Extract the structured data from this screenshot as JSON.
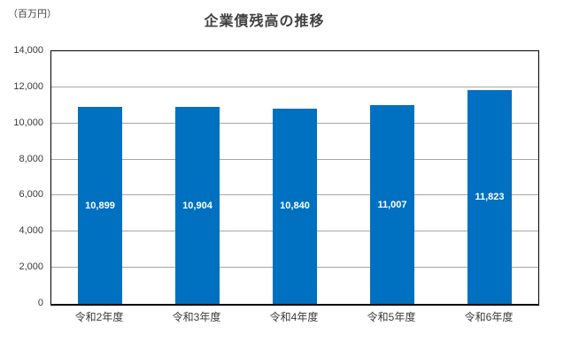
{
  "header": {
    "title": "企業債残高の推移",
    "unit_label": "（百万円）"
  },
  "chart_data": {
    "type": "bar",
    "title": "企業債残高の推移",
    "unit": "（百万円）",
    "categories": [
      "令和2年度",
      "令和3年度",
      "令和4年度",
      "令和5年度",
      "令和6年度"
    ],
    "values": [
      10899,
      10904,
      10840,
      11007,
      11823
    ],
    "data_labels": [
      "10,899",
      "10,904",
      "10,840",
      "11,007",
      "11,823"
    ],
    "xlabel": "",
    "ylabel": "",
    "ylim": [
      0,
      14000
    ],
    "ytick_step": 2000,
    "ytick_labels": [
      "0",
      "2,000",
      "4,000",
      "6,000",
      "8,000",
      "10,000",
      "12,000",
      "14,000"
    ],
    "grid": true,
    "legend": "none",
    "colors": {
      "bar": "#0070C0",
      "bar_label": "#ffffff",
      "gridline": "#a6a6a6",
      "axis_border": "#000000",
      "text": "#404040"
    }
  }
}
